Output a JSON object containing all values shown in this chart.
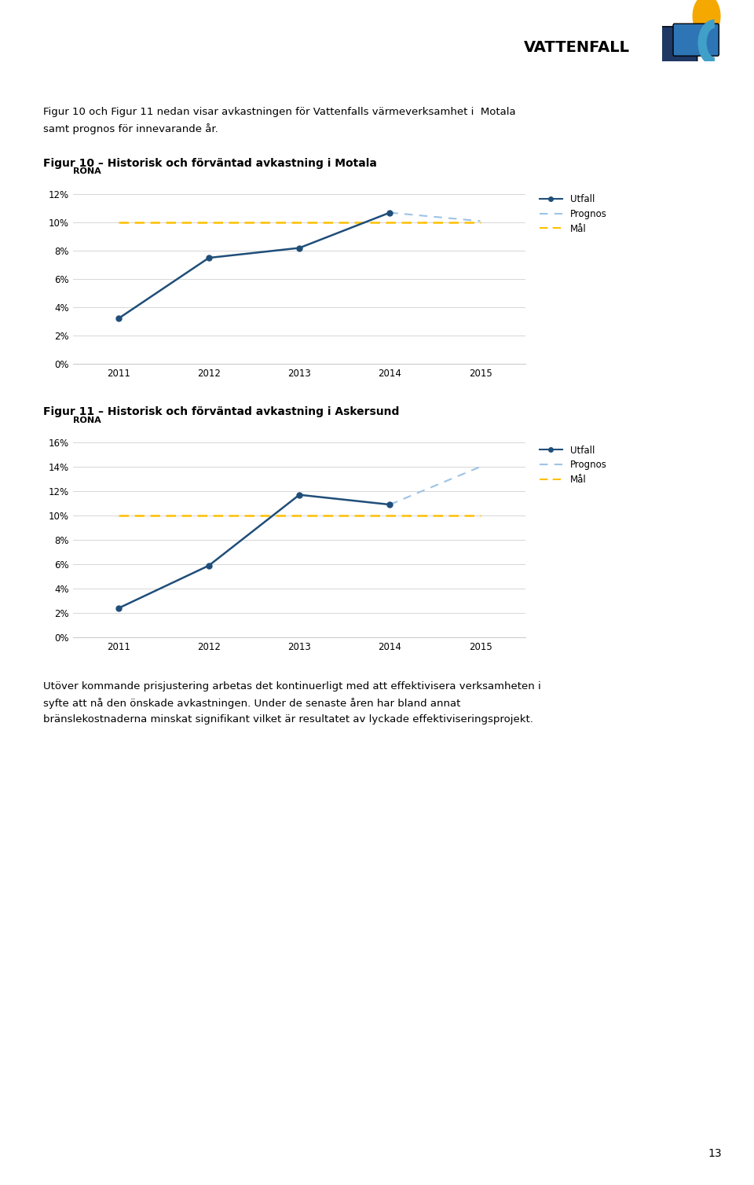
{
  "page_bg": "#ffffff",
  "intro_text_line1": "Figur 10 och Figur 11 nedan visar avkastningen för Vattenfalls värmeverksamhet i  Motala",
  "intro_text_line2": "samt prognos för innevarande år.",
  "fig10_title": "Figur 10 – Historisk och förväntad avkastning i Motala",
  "fig11_title": "Figur 11 – Historisk och förväntad avkastning i Askersund",
  "rona_label": "RONA",
  "years": [
    2011,
    2012,
    2013,
    2014,
    2015
  ],
  "fig10_utfall": [
    0.032,
    0.075,
    0.082,
    0.107,
    null
  ],
  "fig10_prognos": [
    null,
    null,
    null,
    0.107,
    0.101
  ],
  "fig10_mal": [
    0.1,
    0.1,
    0.1,
    0.1,
    0.1
  ],
  "fig10_ylim": [
    0,
    0.13
  ],
  "fig10_yticks": [
    0,
    0.02,
    0.04,
    0.06,
    0.08,
    0.1,
    0.12
  ],
  "fig10_ytick_labels": [
    "0%",
    "2%",
    "4%",
    "6%",
    "8%",
    "10%",
    "12%"
  ],
  "fig11_utfall": [
    0.024,
    0.059,
    0.117,
    0.109,
    null
  ],
  "fig11_prognos": [
    null,
    null,
    null,
    0.109,
    0.14
  ],
  "fig11_mal": [
    0.1,
    0.1,
    0.1,
    0.1,
    0.1
  ],
  "fig11_ylim": [
    0,
    0.17
  ],
  "fig11_yticks": [
    0,
    0.02,
    0.04,
    0.06,
    0.08,
    0.1,
    0.12,
    0.14,
    0.16
  ],
  "fig11_ytick_labels": [
    "0%",
    "2%",
    "4%",
    "6%",
    "8%",
    "10%",
    "12%",
    "14%",
    "16%"
  ],
  "utfall_color": "#1F4E79",
  "prognos_color": "#9DC3E6",
  "mal_color": "#FFC000",
  "utfall_label": "Utfall",
  "prognos_label": "Prognos",
  "mal_label": "Mål",
  "footer_text_line1": "Utöver kommande prisjustering arbetas det kontinuerligt med att effektivisera verksamheten i",
  "footer_text_line2": "syfte att nå den önskade avkastningen. Under de senaste åren har bland annat",
  "footer_text_line3": "bränslekostnaderna minskat signifikant vilket är resultatet av lyckade effektiviseringsprojekt.",
  "page_number": "13",
  "section_line_color": "#1F4E79",
  "grid_color": "#d0d0d0",
  "title_fontsize": 10,
  "body_fontsize": 9.5,
  "axis_fontsize": 8.5,
  "legend_fontsize": 8.5,
  "rona_fontsize": 8
}
